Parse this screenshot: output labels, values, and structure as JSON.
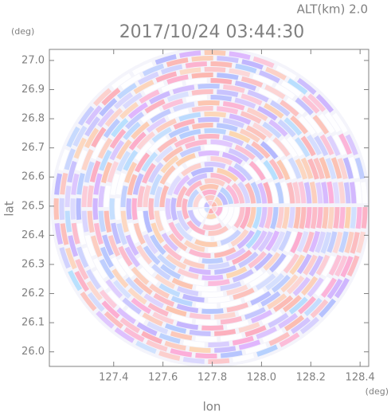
{
  "chart_data": {
    "type": "radar-ppi",
    "title": "2017/10/24 03:44:30",
    "altitude_label": "ALT(km) 2.0",
    "x_label": "lon",
    "y_label": "lat",
    "x_unit": "(deg)",
    "y_unit": "(deg)",
    "xlim": [
      127.139,
      128.435
    ],
    "ylim": [
      25.95,
      27.038
    ],
    "xticks": [
      {
        "value": 127.4,
        "label": "127.4"
      },
      {
        "value": 127.6,
        "label": "127.6"
      },
      {
        "value": 127.8,
        "label": "127.8"
      },
      {
        "value": 128.0,
        "label": "128.0"
      },
      {
        "value": 128.2,
        "label": "128.2"
      },
      {
        "value": 128.4,
        "label": "128.4"
      }
    ],
    "yticks": [
      {
        "value": 26.0,
        "label": "26.0"
      },
      {
        "value": 26.1,
        "label": "26.1"
      },
      {
        "value": 26.2,
        "label": "26.2"
      },
      {
        "value": 26.3,
        "label": "26.3"
      },
      {
        "value": 26.4,
        "label": "26.4"
      },
      {
        "value": 26.5,
        "label": "26.5"
      },
      {
        "value": 26.6,
        "label": "26.6"
      },
      {
        "value": 26.7,
        "label": "26.7"
      },
      {
        "value": 26.8,
        "label": "26.8"
      },
      {
        "value": 26.9,
        "label": "26.9"
      },
      {
        "value": 27.0,
        "label": "27.0"
      }
    ]
  }
}
